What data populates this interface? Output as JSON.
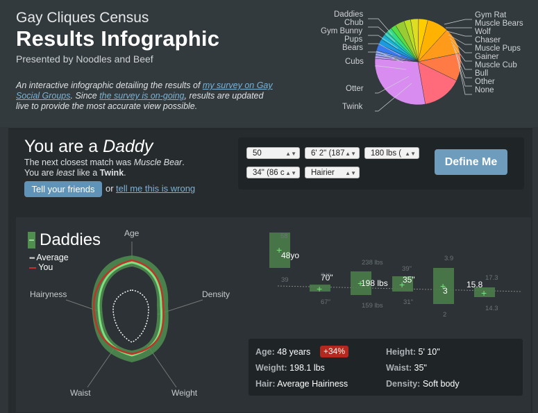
{
  "header": {
    "title_small": "Gay Cliques Census",
    "title_large": "Results Infographic",
    "presented": "Presented by Noodles and Beef",
    "intro_1": "An interactive infographic detailing the results of ",
    "intro_link1": "my survey on Gay Social Groups",
    "intro_2": ". Since ",
    "intro_link2": "the survey is on-going",
    "intro_3": ", results are updated live to provide the most accurate view possible."
  },
  "chart_data": {
    "type": "pie",
    "slices": [
      {
        "label": "Daddies",
        "value": 3.5,
        "color": "#99cc33"
      },
      {
        "label": "Chub",
        "value": 2.5,
        "color": "#bbdd22"
      },
      {
        "label": "Gym Bunny",
        "value": 3.0,
        "color": "#dddd22"
      },
      {
        "label": "Pups",
        "value": 3.5,
        "color": "#ffcc00"
      },
      {
        "label": "Bears",
        "value": 8.0,
        "color": "#ffb300"
      },
      {
        "label": "Cubs",
        "value": 10.0,
        "color": "#ff9a1a"
      },
      {
        "label": "Otter",
        "value": 10.5,
        "color": "#ff7a45"
      },
      {
        "label": "Twink",
        "value": 15.0,
        "color": "#ff6b7a"
      },
      {
        "label": "None",
        "value": 29.0,
        "color": "#d88cf0"
      },
      {
        "label": "Other",
        "value": 1.0,
        "color": "#b89af0"
      },
      {
        "label": "Bull",
        "value": 1.0,
        "color": "#9aa8f0"
      },
      {
        "label": "Gainer",
        "value": 1.0,
        "color": "#7a9af0"
      },
      {
        "label": "Muscle Cub",
        "value": 2.5,
        "color": "#3a7af0"
      },
      {
        "label": "Muscle Pups",
        "value": 2.0,
        "color": "#1a9ae0"
      },
      {
        "label": "Chaser",
        "value": 2.0,
        "color": "#19b4d8"
      },
      {
        "label": "Wolf",
        "value": 1.5,
        "color": "#22ccbb"
      },
      {
        "label": "Muscle Bears",
        "value": 2.0,
        "color": "#33dd88"
      },
      {
        "label": "Gym Rat",
        "value": 2.0,
        "color": "#55dd44"
      }
    ]
  },
  "result": {
    "prefix": "You are a ",
    "type": "Daddy",
    "line1_a": "The next closest match was ",
    "line1_b": "Muscle Bear",
    "line1_c": ".",
    "line2_a": "You are ",
    "line2_b": "least",
    "line2_c": " like a ",
    "line2_d": "Twink",
    "line2_e": ".",
    "tell_btn": "Tell your friends",
    "or": "or",
    "wrong_link": "tell me this is wrong"
  },
  "form": {
    "age": "50",
    "height": "6' 2\" (187",
    "weight": "180 lbs (",
    "waist": "34\" (86 c",
    "hair": "Hairier",
    "define_btn": "Define Me"
  },
  "group": {
    "name": "Daddies",
    "legend_avg": "Average",
    "legend_you": "You",
    "colors": {
      "group": "#4f8e4f",
      "average": "#ffffff",
      "you": "#c0322a",
      "accent": "#6fd66f"
    }
  },
  "radar": {
    "axes": [
      "Age",
      "Density",
      "Weight",
      "Waist",
      "Hairyness"
    ]
  },
  "box_stats": [
    {
      "top": "58",
      "label": "48yo",
      "bottom": "39"
    },
    {
      "top": "74\"",
      "label": "70\"",
      "bottom": "67\""
    },
    {
      "top": "238 lbs",
      "label": "198 lbs",
      "bottom": "159 lbs"
    },
    {
      "top": "39\"",
      "label": "35\"",
      "bottom": "31\""
    },
    {
      "top": "3.9",
      "label": "3",
      "bottom": "2"
    },
    {
      "top": "17.3",
      "label": "15.8",
      "bottom": "14.3"
    }
  ],
  "stats": {
    "age_k": "Age:",
    "age_v": "48 years",
    "age_badge": "+34%",
    "height_k": "Height:",
    "height_v": "5' 10\"",
    "weight_k": "Weight:",
    "weight_v": "198.1 lbs",
    "waist_k": "Waist:",
    "waist_v": "35\"",
    "hair_k": "Hair:",
    "hair_v": "Average Hairiness",
    "density_k": "Density:",
    "density_v": "Soft body"
  }
}
